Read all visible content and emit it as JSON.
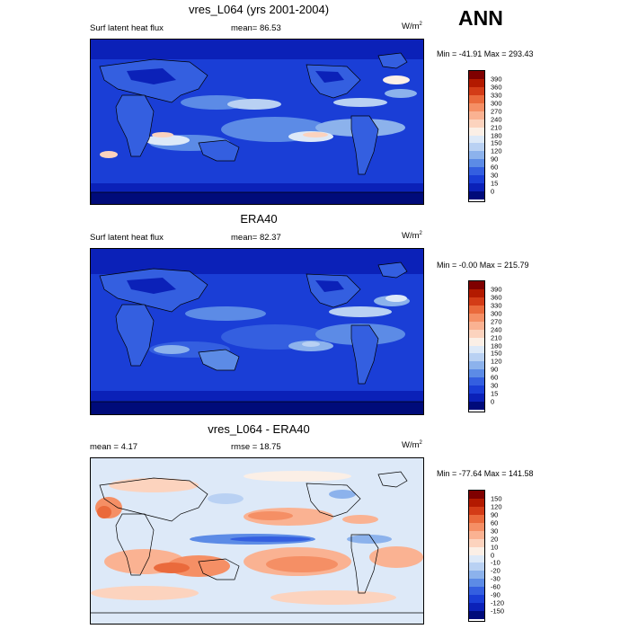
{
  "season": "ANN",
  "panels": [
    {
      "title": "vres_L064 (yrs 2001-2004)",
      "left_label": "Surf latent heat flux",
      "mid_label": "mean=  86.53",
      "units_base": "W/m",
      "units_exp": "2",
      "minmax": "Min = -41.91 Max = 293.43",
      "colorbar": {
        "labels": [
          "390",
          "360",
          "330",
          "300",
          "270",
          "240",
          "210",
          "180",
          "150",
          "120",
          "90",
          "60",
          "30",
          "15",
          "0"
        ],
        "colors": [
          "#7f0000",
          "#b31a00",
          "#d33c17",
          "#ea6a3c",
          "#f58f65",
          "#fab292",
          "#fcd3be",
          "#fbefe6",
          "#dde9f8",
          "#b9d1f3",
          "#8cb2ec",
          "#5c8be6",
          "#345fe0",
          "#1a3ed6",
          "#0b21b8",
          "#000b7a"
        ]
      },
      "style": "latent"
    },
    {
      "title": "ERA40",
      "left_label": "Surf latent heat flux",
      "mid_label": "mean=  82.37",
      "units_base": "W/m",
      "units_exp": "2",
      "minmax": "Min =  -0.00 Max = 215.79",
      "colorbar": {
        "labels": [
          "390",
          "360",
          "330",
          "300",
          "270",
          "240",
          "210",
          "180",
          "150",
          "120",
          "90",
          "60",
          "30",
          "15",
          "0"
        ],
        "colors": [
          "#7f0000",
          "#b31a00",
          "#d33c17",
          "#ea6a3c",
          "#f58f65",
          "#fab292",
          "#fcd3be",
          "#fbefe6",
          "#dde9f8",
          "#b9d1f3",
          "#8cb2ec",
          "#5c8be6",
          "#345fe0",
          "#1a3ed6",
          "#0b21b8",
          "#000b7a"
        ]
      },
      "style": "latent-obs"
    },
    {
      "title": "vres_L064 - ERA40",
      "left_label": "mean =   4.17",
      "mid_label": "rmse =  18.75",
      "units_base": "W/m",
      "units_exp": "2",
      "minmax": "Min = -77.64 Max = 141.58",
      "colorbar": {
        "labels": [
          "150",
          "120",
          "90",
          "60",
          "30",
          "20",
          "10",
          "0",
          "-10",
          "-20",
          "-30",
          "-60",
          "-90",
          "-120",
          "-150"
        ],
        "colors": [
          "#7f0000",
          "#b31a00",
          "#d33c17",
          "#ea6a3c",
          "#f58f65",
          "#fab292",
          "#fcd3be",
          "#fbefe6",
          "#dde9f8",
          "#b9d1f3",
          "#8cb2ec",
          "#5c8be6",
          "#345fe0",
          "#1a3ed6",
          "#0b21b8",
          "#000b7a"
        ]
      },
      "style": "diff"
    }
  ]
}
